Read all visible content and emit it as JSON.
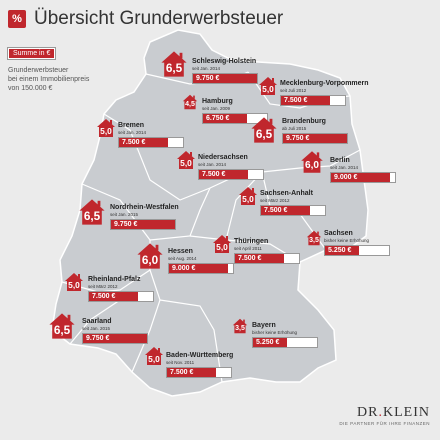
{
  "header": {
    "icon": "%",
    "title": "Übersicht Grunderwerbsteuer"
  },
  "legend": {
    "chip": "Summe in €",
    "note": "Grunderwerbsteuer\nbei einem Immobilienpreis\nvon 150.000 €"
  },
  "colors": {
    "accent": "#c0272d",
    "map": "#c9ccd0",
    "background": "#ebebeb"
  },
  "bar_scale_max": 9750,
  "states": [
    {
      "id": "schleswig-holstein",
      "rate": "6,5",
      "name": "Schleswig-Holstein",
      "since": "seit Jan. 2014",
      "amount": "9.750 €",
      "value": 9750
    },
    {
      "id": "mecklenburg-vorpommern",
      "rate": "5,0",
      "name": "Mecklenburg-Vorpommern",
      "since": "seit Juli 2012",
      "amount": "7.500 €",
      "value": 7500
    },
    {
      "id": "hamburg",
      "rate": "4,5",
      "name": "Hamburg",
      "since": "seit Jan. 2009",
      "amount": "6.750 €",
      "value": 6750
    },
    {
      "id": "bremen",
      "rate": "5,0",
      "name": "Bremen",
      "since": "seit Jan. 2014",
      "amount": "7.500 €",
      "value": 7500
    },
    {
      "id": "brandenburg",
      "rate": "6,5",
      "name": "Brandenburg",
      "since": "ab Juli 2015",
      "amount": "9.750 €",
      "value": 9750
    },
    {
      "id": "niedersachsen",
      "rate": "5,0",
      "name": "Niedersachsen",
      "since": "seit Jan. 2014",
      "amount": "7.500 €",
      "value": 7500
    },
    {
      "id": "berlin",
      "rate": "6,0",
      "name": "Berlin",
      "since": "seit Jan. 2014",
      "amount": "9.000 €",
      "value": 9000
    },
    {
      "id": "sachsen-anhalt",
      "rate": "5,0",
      "name": "Sachsen-Anhalt",
      "since": "seit März 2012",
      "amount": "7.500 €",
      "value": 7500
    },
    {
      "id": "nordrhein-westfalen",
      "rate": "6,5",
      "name": "Nordrhein-Westfalen",
      "since": "seit Jan. 2015",
      "amount": "9.750 €",
      "value": 9750
    },
    {
      "id": "sachsen",
      "rate": "3,5",
      "name": "Sachsen",
      "since": "bisher keine Erhöhung",
      "amount": "5.250 €",
      "value": 5250
    },
    {
      "id": "hessen",
      "rate": "6,0",
      "name": "Hessen",
      "since": "seit Aug. 2014",
      "amount": "9.000 €",
      "value": 9000
    },
    {
      "id": "thueringen",
      "rate": "5,0",
      "name": "Thüringen",
      "since": "seit April 2011",
      "amount": "7.500 €",
      "value": 7500
    },
    {
      "id": "rheinland-pfalz",
      "rate": "5,0",
      "name": "Rheinland-Pfalz",
      "since": "seit März 2012",
      "amount": "7.500 €",
      "value": 7500
    },
    {
      "id": "saarland",
      "rate": "6,5",
      "name": "Saarland",
      "since": "seit Jan. 2015",
      "amount": "9.750 €",
      "value": 9750
    },
    {
      "id": "bayern",
      "rate": "3,5",
      "name": "Bayern",
      "since": "bisher keine Erhöhung",
      "amount": "5.250 €",
      "value": 5250
    },
    {
      "id": "baden-wuerttemberg",
      "rate": "5,0",
      "name": "Baden-Württemberg",
      "since": "seit Nov. 2011",
      "amount": "7.500 €",
      "value": 7500
    }
  ],
  "logo": {
    "name_left": "DR",
    "name_dot": ".",
    "name_right": "KLEIN",
    "tagline": "DIE PARTNER FÜR IHRE FINANZEN"
  }
}
